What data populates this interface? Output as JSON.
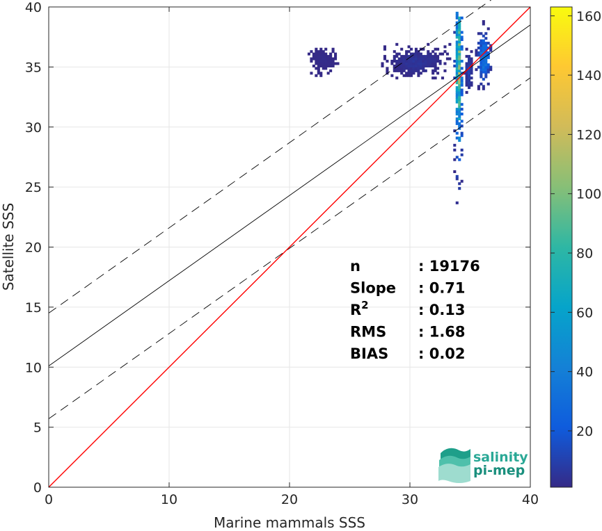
{
  "chart_data": {
    "type": "heatmap",
    "xlabel": "Marine mammals SSS",
    "ylabel": "Satellite SSS",
    "xlim": [
      0,
      40
    ],
    "ylim": [
      0,
      40
    ],
    "xticks": [
      "0",
      "10",
      "20",
      "30",
      "40"
    ],
    "yticks": [
      "0",
      "5",
      "10",
      "15",
      "20",
      "25",
      "30",
      "35",
      "40"
    ],
    "grid": true,
    "colorbar": {
      "range": [
        1,
        163
      ],
      "ticks": [
        "20",
        "40",
        "60",
        "80",
        "100",
        "120",
        "140",
        "160"
      ],
      "colormap": "parula"
    },
    "lines": {
      "identity": {
        "slope": 1,
        "intercept": 0,
        "color": "#ff0000"
      },
      "fit": {
        "slope": 0.71,
        "intercept": 10.1,
        "color": "#000000"
      },
      "upper_bound": {
        "slope": 0.71,
        "intercept": 14.5,
        "color": "#000000",
        "dash": true
      },
      "lower_bound": {
        "slope": 0.71,
        "intercept": 5.7,
        "color": "#000000",
        "dash": true
      }
    },
    "density_clusters": [
      {
        "x": [
          33.6,
          34.3
        ],
        "y": [
          23.2,
          39.6
        ],
        "peak_y": 34.8,
        "peak_count": 110
      },
      {
        "x": [
          35.4,
          36.7
        ],
        "y": [
          32.5,
          38.8
        ],
        "peak_y": 35.7,
        "peak_count": 45
      },
      {
        "x": [
          34.4,
          35.2
        ],
        "y": [
          32.0,
          37.0
        ],
        "peak_y": 34.5,
        "peak_count": 12
      },
      {
        "x": [
          27.6,
          33.2
        ],
        "y": [
          34.0,
          37.0
        ],
        "peak_y": 35.3,
        "peak_count": 6
      },
      {
        "x": [
          21.3,
          24.1
        ],
        "y": [
          34.0,
          36.5
        ],
        "peak_y": 35.5,
        "peak_count": 2
      }
    ],
    "stats": [
      {
        "label": "n",
        "sup": "",
        "value": ": 19176"
      },
      {
        "label": "Slope",
        "sup": "",
        "value": ": 0.71"
      },
      {
        "label": "R",
        "sup": "2",
        "value": ": 0.13"
      },
      {
        "label": "RMS",
        "sup": "",
        "value": ": 1.68"
      },
      {
        "label": "BIAS",
        "sup": "",
        "value": ": 0.02"
      }
    ]
  },
  "logo": {
    "line1": "salinity",
    "line2": "pi-mep",
    "color": "#2aa896"
  }
}
